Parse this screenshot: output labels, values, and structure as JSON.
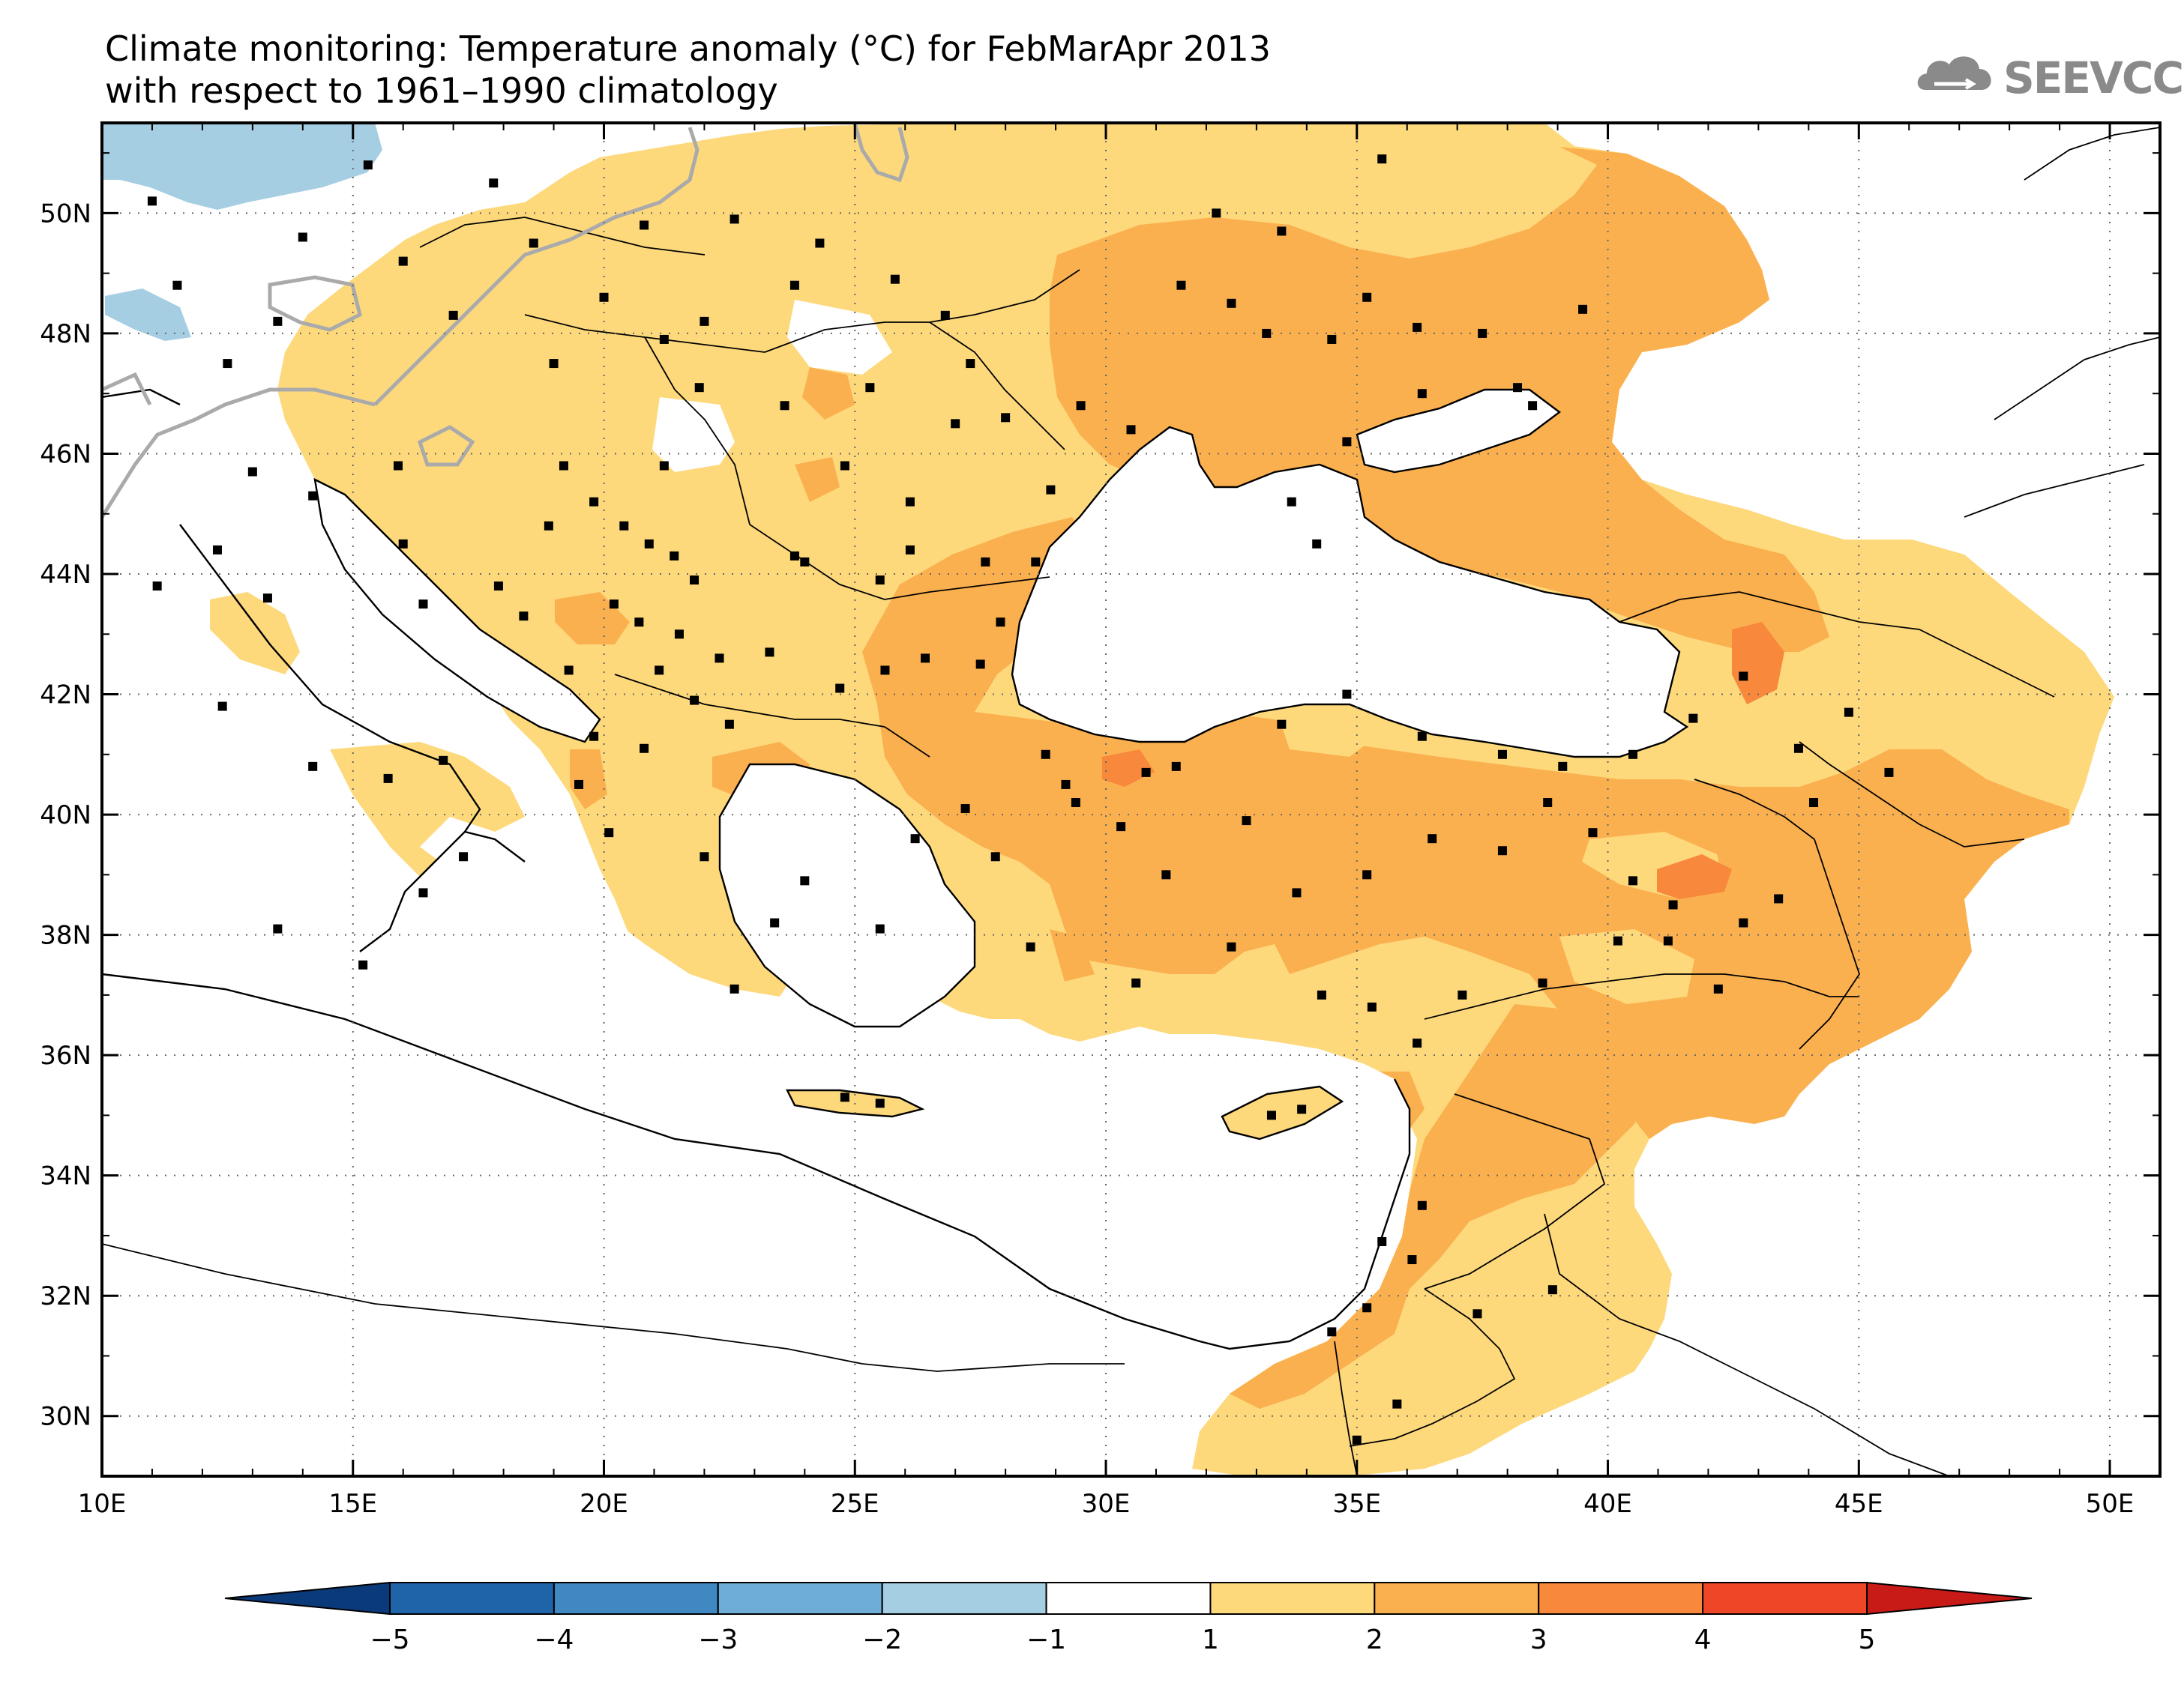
{
  "title": {
    "line1": "Climate monitoring: Temperature anomaly (°C) for FebMarApr 2013",
    "line2": "with respect to 1961–1990 climatology"
  },
  "logo": {
    "text": "SEEVCCC",
    "icon": "cloud-icon"
  },
  "map": {
    "lon_range": [
      10,
      51
    ],
    "lat_range": [
      29,
      51.5
    ],
    "lon_ticks": [
      {
        "value": 10,
        "label": "10E"
      },
      {
        "value": 15,
        "label": "15E"
      },
      {
        "value": 20,
        "label": "20E"
      },
      {
        "value": 25,
        "label": "25E"
      },
      {
        "value": 30,
        "label": "30E"
      },
      {
        "value": 35,
        "label": "35E"
      },
      {
        "value": 40,
        "label": "40E"
      },
      {
        "value": 45,
        "label": "45E"
      },
      {
        "value": 50,
        "label": "50E"
      }
    ],
    "lat_ticks": [
      {
        "value": 30,
        "label": "30N"
      },
      {
        "value": 32,
        "label": "32N"
      },
      {
        "value": 34,
        "label": "34N"
      },
      {
        "value": 36,
        "label": "36N"
      },
      {
        "value": 38,
        "label": "38N"
      },
      {
        "value": 40,
        "label": "40N"
      },
      {
        "value": 42,
        "label": "42N"
      },
      {
        "value": 44,
        "label": "44N"
      },
      {
        "value": 46,
        "label": "46N"
      },
      {
        "value": 48,
        "label": "48N"
      },
      {
        "value": 50,
        "label": "50N"
      }
    ],
    "gridlines": true,
    "colors": {
      "anom_1_2": "#fdd97c",
      "anom_2_3": "#fbb04f",
      "anom_3_4": "#f7883c",
      "anom_neg_1_2": "#a6cee3",
      "land_border": "#000000",
      "zero_contour": "#aaaaaa"
    }
  },
  "colorbar": {
    "ticks": [
      "−5",
      "−4",
      "−3",
      "−2",
      "−1",
      "1",
      "2",
      "3",
      "4",
      "5"
    ],
    "colors": [
      "#0b3a7a",
      "#1f64a8",
      "#3f88c2",
      "#6eaed6",
      "#a6cee3",
      "#ffffff",
      "#fdd97c",
      "#fbb04f",
      "#f7883c",
      "#f04628",
      "#c81a16"
    ],
    "extend": "both"
  }
}
